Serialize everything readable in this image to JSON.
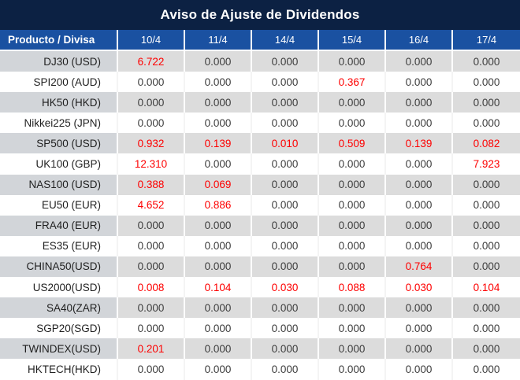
{
  "title": "Aviso de Ajuste de Dividendos",
  "colors": {
    "navy": "#0c2143",
    "headerBlue": "#1a51a1",
    "grayProd": "#d2d5d9",
    "grayCell": "#dcdcdc",
    "red": "#fe0000",
    "text": "#3d3d3d",
    "prodText": "#1f1f1f"
  },
  "table": {
    "product_header": "Producto / Divisa",
    "date_columns": [
      "10/4",
      "11/4",
      "14/4",
      "15/4",
      "16/4",
      "17/4"
    ],
    "rows": [
      {
        "product": "DJ30 (USD)",
        "values": [
          "6.722",
          "0.000",
          "0.000",
          "0.000",
          "0.000",
          "0.000"
        ],
        "red": [
          0
        ]
      },
      {
        "product": "SPI200 (AUD)",
        "values": [
          "0.000",
          "0.000",
          "0.000",
          "0.367",
          "0.000",
          "0.000"
        ],
        "red": [
          3
        ]
      },
      {
        "product": "HK50 (HKD)",
        "values": [
          "0.000",
          "0.000",
          "0.000",
          "0.000",
          "0.000",
          "0.000"
        ],
        "red": []
      },
      {
        "product": "Nikkei225 (JPN)",
        "values": [
          "0.000",
          "0.000",
          "0.000",
          "0.000",
          "0.000",
          "0.000"
        ],
        "red": []
      },
      {
        "product": "SP500 (USD)",
        "values": [
          "0.932",
          "0.139",
          "0.010",
          "0.509",
          "0.139",
          "0.082"
        ],
        "red": [
          0,
          1,
          2,
          3,
          4,
          5
        ]
      },
      {
        "product": "UK100 (GBP)",
        "values": [
          "12.310",
          "0.000",
          "0.000",
          "0.000",
          "0.000",
          "7.923"
        ],
        "red": [
          0,
          5
        ]
      },
      {
        "product": "NAS100 (USD)",
        "values": [
          "0.388",
          "0.069",
          "0.000",
          "0.000",
          "0.000",
          "0.000"
        ],
        "red": [
          0,
          1
        ]
      },
      {
        "product": "EU50 (EUR)",
        "values": [
          "4.652",
          "0.886",
          "0.000",
          "0.000",
          "0.000",
          "0.000"
        ],
        "red": [
          0,
          1
        ]
      },
      {
        "product": "FRA40 (EUR)",
        "values": [
          "0.000",
          "0.000",
          "0.000",
          "0.000",
          "0.000",
          "0.000"
        ],
        "red": []
      },
      {
        "product": "ES35 (EUR)",
        "values": [
          "0.000",
          "0.000",
          "0.000",
          "0.000",
          "0.000",
          "0.000"
        ],
        "red": []
      },
      {
        "product": "CHINA50(USD)",
        "values": [
          "0.000",
          "0.000",
          "0.000",
          "0.000",
          "0.764",
          "0.000"
        ],
        "red": [
          4
        ]
      },
      {
        "product": "US2000(USD)",
        "values": [
          "0.008",
          "0.104",
          "0.030",
          "0.088",
          "0.030",
          "0.104"
        ],
        "red": [
          0,
          1,
          2,
          3,
          4,
          5
        ]
      },
      {
        "product": "SA40(ZAR)",
        "values": [
          "0.000",
          "0.000",
          "0.000",
          "0.000",
          "0.000",
          "0.000"
        ],
        "red": []
      },
      {
        "product": "SGP20(SGD)",
        "values": [
          "0.000",
          "0.000",
          "0.000",
          "0.000",
          "0.000",
          "0.000"
        ],
        "red": []
      },
      {
        "product": "TWINDEX(USD)",
        "values": [
          "0.201",
          "0.000",
          "0.000",
          "0.000",
          "0.000",
          "0.000"
        ],
        "red": [
          0
        ]
      },
      {
        "product": "HKTECH(HKD)",
        "values": [
          "0.000",
          "0.000",
          "0.000",
          "0.000",
          "0.000",
          "0.000"
        ],
        "red": []
      }
    ]
  },
  "chart_data": {
    "type": "table",
    "title": "Aviso de Ajuste de Dividendos",
    "columns": [
      "Producto / Divisa",
      "10/4",
      "11/4",
      "14/4",
      "15/4",
      "16/4",
      "17/4"
    ],
    "rows": [
      [
        "DJ30 (USD)",
        6.722,
        0.0,
        0.0,
        0.0,
        0.0,
        0.0
      ],
      [
        "SPI200 (AUD)",
        0.0,
        0.0,
        0.0,
        0.367,
        0.0,
        0.0
      ],
      [
        "HK50 (HKD)",
        0.0,
        0.0,
        0.0,
        0.0,
        0.0,
        0.0
      ],
      [
        "Nikkei225 (JPN)",
        0.0,
        0.0,
        0.0,
        0.0,
        0.0,
        0.0
      ],
      [
        "SP500 (USD)",
        0.932,
        0.139,
        0.01,
        0.509,
        0.139,
        0.082
      ],
      [
        "UK100 (GBP)",
        12.31,
        0.0,
        0.0,
        0.0,
        0.0,
        7.923
      ],
      [
        "NAS100 (USD)",
        0.388,
        0.069,
        0.0,
        0.0,
        0.0,
        0.0
      ],
      [
        "EU50 (EUR)",
        4.652,
        0.886,
        0.0,
        0.0,
        0.0,
        0.0
      ],
      [
        "FRA40 (EUR)",
        0.0,
        0.0,
        0.0,
        0.0,
        0.0,
        0.0
      ],
      [
        "ES35 (EUR)",
        0.0,
        0.0,
        0.0,
        0.0,
        0.0,
        0.0
      ],
      [
        "CHINA50(USD)",
        0.0,
        0.0,
        0.0,
        0.0,
        0.764,
        0.0
      ],
      [
        "US2000(USD)",
        0.008,
        0.104,
        0.03,
        0.088,
        0.03,
        0.104
      ],
      [
        "SA40(ZAR)",
        0.0,
        0.0,
        0.0,
        0.0,
        0.0,
        0.0
      ],
      [
        "SGP20(SGD)",
        0.0,
        0.0,
        0.0,
        0.0,
        0.0,
        0.0
      ],
      [
        "TWINDEX(USD)",
        0.201,
        0.0,
        0.0,
        0.0,
        0.0,
        0.0
      ],
      [
        "HKTECH(HKD)",
        0.0,
        0.0,
        0.0,
        0.0,
        0.0,
        0.0
      ]
    ],
    "highlight_color_for_nonzero_adjustments": "#fe0000",
    "legend_position": "none",
    "grid": "off"
  }
}
